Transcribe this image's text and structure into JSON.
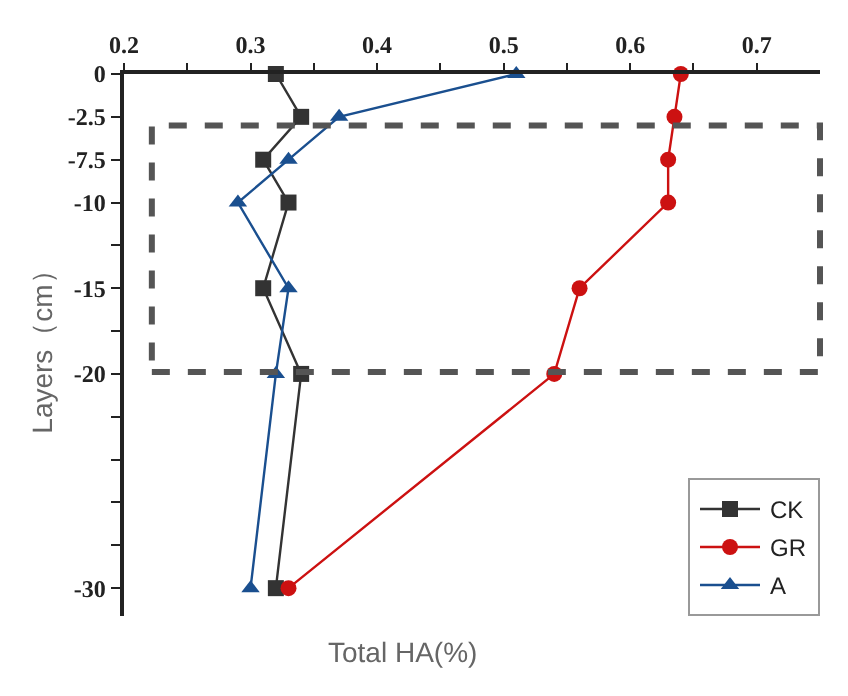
{
  "chart_data": {
    "type": "line",
    "orientation": "horizontal",
    "categories": [
      "0",
      "-2.5",
      "-7.5",
      "-10",
      null,
      "-15",
      null,
      "-20",
      null,
      null,
      null,
      null,
      "-30"
    ],
    "xlabel": "Total HA(%)",
    "ylabel": "Layers（cm）",
    "xlim": [
      0.2,
      0.75
    ],
    "xticks": [
      0.2,
      {
        "value": 0.25,
        "label": null
      },
      0.3,
      {
        "value": 0.35,
        "label": null
      },
      0.4,
      {
        "value": 0.45,
        "label": null
      },
      0.5,
      {
        "value": 0.55,
        "label": null
      },
      0.6,
      {
        "value": 0.65,
        "label": null
      },
      0.7
    ],
    "series": [
      {
        "name": "CK",
        "color": "#333333",
        "marker": "square",
        "values": [
          0.32,
          0.34,
          0.31,
          0.33,
          null,
          0.31,
          null,
          0.34,
          null,
          null,
          null,
          null,
          0.32
        ]
      },
      {
        "name": "GR",
        "color": "#cc1111",
        "marker": "circle",
        "values": [
          0.64,
          0.635,
          0.63,
          0.63,
          null,
          0.56,
          null,
          0.54,
          null,
          null,
          null,
          null,
          0.33
        ]
      },
      {
        "name": "A",
        "color": "#1a4f8f",
        "marker": "triangle",
        "values": [
          0.51,
          0.37,
          0.33,
          0.29,
          null,
          0.33,
          null,
          0.32,
          null,
          null,
          null,
          null,
          0.3
        ]
      }
    ],
    "legend": "bottom right"
  }
}
